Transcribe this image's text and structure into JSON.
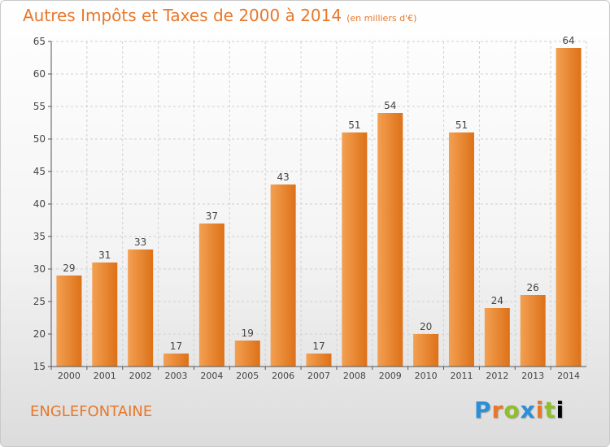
{
  "title": "Autres Impôts et Taxes de 2000 à 2014",
  "unit": "(en milliers d'€)",
  "place": "ENGLEFONTAINE",
  "logo_letters": [
    "P",
    "r",
    "o",
    "x",
    "i",
    "t",
    "i"
  ],
  "logo_text": "Proxiti",
  "colors": {
    "bar_light": "#f5a55a",
    "bar_dark": "#de7420",
    "title": "#e8772a"
  },
  "chart_data": {
    "type": "bar",
    "categories": [
      "2000",
      "2001",
      "2002",
      "2003",
      "2004",
      "2005",
      "2006",
      "2007",
      "2008",
      "2009",
      "2010",
      "2011",
      "2012",
      "2013",
      "2014"
    ],
    "values": [
      29,
      31,
      33,
      17,
      37,
      19,
      43,
      17,
      51,
      54,
      20,
      51,
      24,
      26,
      64
    ],
    "ylim": [
      15,
      65
    ],
    "yticks": [
      15,
      20,
      25,
      30,
      35,
      40,
      45,
      50,
      55,
      60,
      65
    ],
    "grid": true
  }
}
